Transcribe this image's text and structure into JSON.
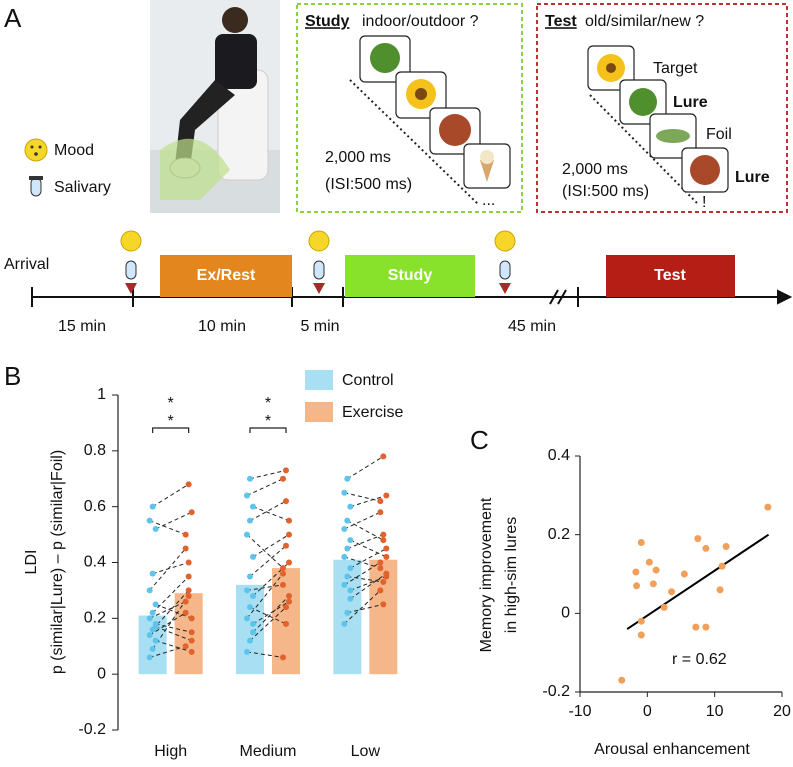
{
  "panel_labels": [
    "A",
    "B",
    "C"
  ],
  "panel_a": {
    "mood": "Mood",
    "salivary": "Salivary",
    "study": {
      "title": "Study",
      "question": "indoor/outdoor ?",
      "timing": [
        "2,000 ms",
        "(ISI:500 ms)"
      ],
      "more": "..."
    },
    "test": {
      "title": "Test",
      "question": "old/similar/new ?",
      "items": [
        "Target",
        "Lure",
        "Foil",
        "Lure"
      ],
      "timing": [
        "2,000 ms",
        "(ISI:500 ms)"
      ],
      "more": "!"
    },
    "timeline": {
      "start": "Arrival",
      "phases": [
        "Ex/Rest",
        "Study",
        "Test"
      ],
      "durations": [
        "15 min",
        "10 min",
        "5 min",
        "45 min"
      ]
    }
  },
  "chart_data": [
    {
      "type": "bar",
      "y_label": "LDI",
      "y_sublabel": "p (similar|Lure) – p (similar|Foil)",
      "categories": [
        "High",
        "Medium",
        "Low"
      ],
      "series": [
        {
          "name": "Control",
          "color": "#a9dff2",
          "point_color": "#5ec4ec",
          "values": [
            0.21,
            0.32,
            0.41
          ],
          "subjects": [
            [
              0.06,
              0.09,
              0.12,
              0.14,
              0.16,
              0.18,
              0.2,
              0.22,
              0.25,
              0.3,
              0.36,
              0.52,
              0.55,
              0.6,
              0.17
            ],
            [
              0.08,
              0.12,
              0.18,
              0.2,
              0.24,
              0.28,
              0.3,
              0.35,
              0.42,
              0.5,
              0.55,
              0.6,
              0.64,
              0.7,
              0.15
            ],
            [
              0.18,
              0.22,
              0.27,
              0.32,
              0.35,
              0.38,
              0.42,
              0.45,
              0.48,
              0.52,
              0.55,
              0.6,
              0.65,
              0.7,
              0.3
            ]
          ]
        },
        {
          "name": "Exercise",
          "color": "#f5b68a",
          "point_color": "#e0622c",
          "values": [
            0.29,
            0.38,
            0.41
          ],
          "subjects": [
            [
              0.1,
              0.28,
              0.08,
              0.22,
              0.3,
              0.15,
              0.26,
              0.35,
              0.2,
              0.45,
              0.4,
              0.58,
              0.5,
              0.68,
              0.12
            ],
            [
              0.06,
              0.24,
              0.26,
              0.36,
              0.18,
              0.4,
              0.32,
              0.46,
              0.5,
              0.38,
              0.62,
              0.55,
              0.7,
              0.73,
              0.28
            ],
            [
              0.3,
              0.25,
              0.36,
              0.4,
              0.33,
              0.45,
              0.38,
              0.5,
              0.42,
              0.58,
              0.48,
              0.64,
              0.62,
              0.78,
              0.35
            ]
          ]
        }
      ],
      "significance": [
        [
          "*",
          "*"
        ],
        [
          "*",
          "*"
        ],
        null
      ],
      "ylim": [
        -0.2,
        1
      ],
      "yticks": [
        -0.2,
        0,
        0.2,
        0.4,
        0.6,
        0.8,
        1
      ]
    },
    {
      "type": "scatter",
      "x_label": "Arousal enhancement",
      "y_label": [
        "Memory improvement",
        "in high-sim lures"
      ],
      "color": "#f0a05a",
      "x": [
        -0.9,
        0.3,
        -1.7,
        0.9,
        -1.6,
        1.3,
        3.6,
        5.5,
        7.5,
        8.7,
        11.7,
        11.1,
        10.8,
        -0.9,
        -0.9,
        7.2,
        8.7,
        -3.8,
        17.9,
        2.5
      ],
      "y": [
        0.18,
        0.13,
        0.105,
        0.075,
        0.07,
        0.11,
        0.055,
        0.1,
        0.19,
        0.165,
        0.17,
        0.12,
        0.06,
        -0.02,
        -0.055,
        -0.035,
        -0.035,
        -0.17,
        0.27,
        0.015
      ],
      "fit_line": {
        "color": "#000000",
        "x": [
          -3,
          18
        ],
        "y": [
          -0.04,
          0.2
        ]
      },
      "annotation": "r = 0.62",
      "xlim": [
        -10,
        20
      ],
      "xticks": [
        -10,
        0,
        10,
        20
      ],
      "ylim": [
        -0.2,
        0.4
      ],
      "yticks": [
        -0.2,
        0,
        0.2,
        0.4
      ]
    }
  ]
}
